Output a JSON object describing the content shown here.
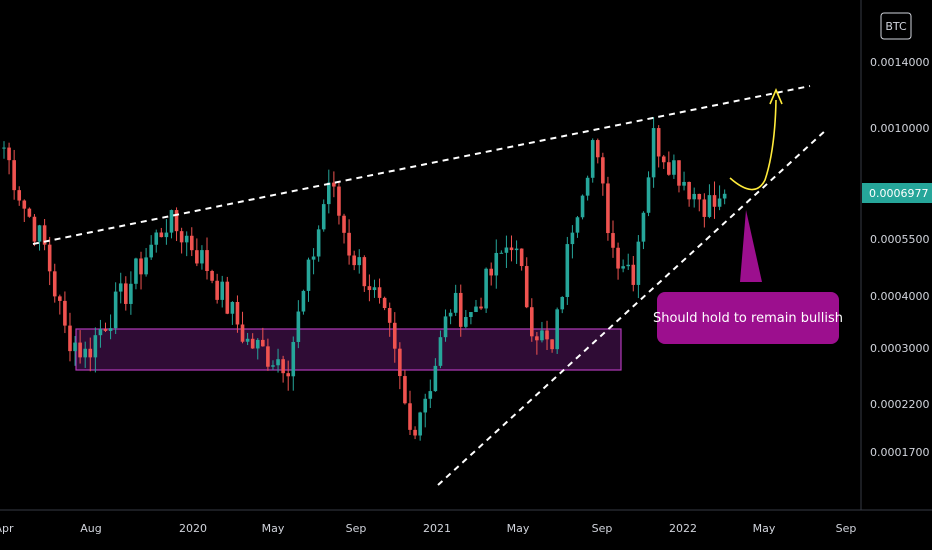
{
  "chart_data": {
    "type": "candlestick",
    "symbol_badge": "BTC",
    "current_price": "0.0006977",
    "current_price_color": "#26a69a",
    "up_color": "#26a69a",
    "down_color": "#ef5350",
    "y_scale": "log",
    "y_ticks": [
      "0.0014000",
      "0.0010000",
      "0.0005500",
      "0.0004000",
      "0.0003000",
      "0.0002200",
      "0.0001700"
    ],
    "x_ticks": [
      "Apr",
      "Aug",
      "2020",
      "May",
      "Sep",
      "2021",
      "May",
      "Sep",
      "2022",
      "May",
      "Sep"
    ],
    "x_range": [
      "2019-04",
      "2022-09"
    ],
    "ylim": [
      0.000135,
      0.0019
    ],
    "support_zone": {
      "from": "2019-06",
      "to": "2021-09",
      "low": 0.00027,
      "high": 0.00034,
      "color": "#9c27b0"
    },
    "annotation": {
      "text": "Should hold to remain bullish",
      "color": "#9c0f8e"
    },
    "trendlines": [
      "upper resistance (dashed)",
      "rising support (dashed)"
    ],
    "projection": "bullish bounce (yellow arrow)",
    "closes": [
      {
        "date": "2019-04",
        "close": 0.0009
      },
      {
        "date": "2019-05",
        "close": 0.00065
      },
      {
        "date": "2019-06",
        "close": 0.00052
      },
      {
        "date": "2019-07",
        "close": 0.00033
      },
      {
        "date": "2019-08",
        "close": 0.00029
      },
      {
        "date": "2019-09",
        "close": 0.00035
      },
      {
        "date": "2019-10",
        "close": 0.00041
      },
      {
        "date": "2019-11",
        "close": 0.0005
      },
      {
        "date": "2019-12",
        "close": 0.0006
      },
      {
        "date": "2020-01",
        "close": 0.00055
      },
      {
        "date": "2020-02",
        "close": 0.00047
      },
      {
        "date": "2020-03",
        "close": 0.00038
      },
      {
        "date": "2020-04",
        "close": 0.00031
      },
      {
        "date": "2020-05",
        "close": 0.00029
      },
      {
        "date": "2020-06",
        "close": 0.00028
      },
      {
        "date": "2020-07",
        "close": 0.00045
      },
      {
        "date": "2020-08",
        "close": 0.00075
      },
      {
        "date": "2020-09",
        "close": 0.00052
      },
      {
        "date": "2020-10",
        "close": 0.00043
      },
      {
        "date": "2020-11",
        "close": 0.00032
      },
      {
        "date": "2020-12",
        "close": 0.00019
      },
      {
        "date": "2021-01",
        "close": 0.00025
      },
      {
        "date": "2021-02",
        "close": 0.00038
      },
      {
        "date": "2021-03",
        "close": 0.00036
      },
      {
        "date": "2021-04",
        "close": 0.00045
      },
      {
        "date": "2021-05",
        "close": 0.00055
      },
      {
        "date": "2021-06",
        "close": 0.00035
      },
      {
        "date": "2021-07",
        "close": 0.00029
      },
      {
        "date": "2021-08",
        "close": 0.0006
      },
      {
        "date": "2021-09",
        "close": 0.00093
      },
      {
        "date": "2021-10",
        "close": 0.00052
      },
      {
        "date": "2021-11",
        "close": 0.00046
      },
      {
        "date": "2021-12",
        "close": 0.00095
      },
      {
        "date": "2022-01",
        "close": 0.00082
      },
      {
        "date": "2022-02",
        "close": 0.0007
      },
      {
        "date": "2022-03",
        "close": 0.00065
      }
    ]
  }
}
